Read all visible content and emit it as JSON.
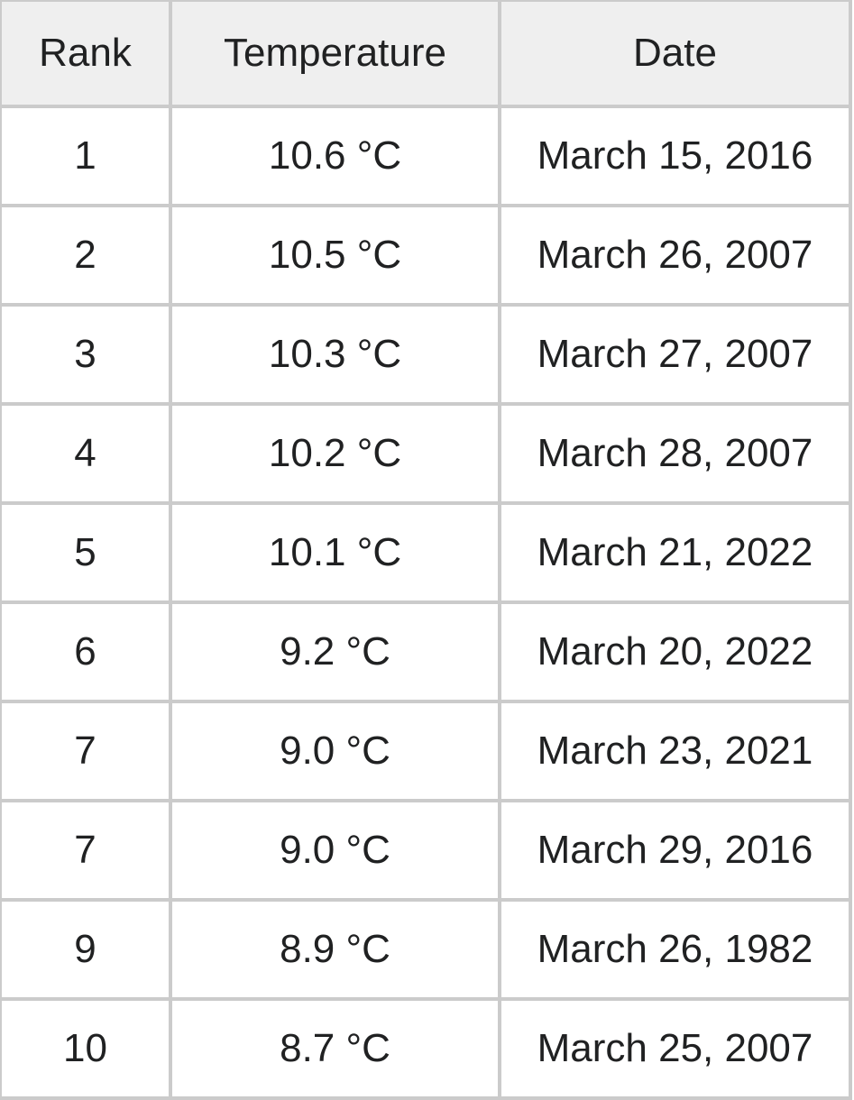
{
  "table": {
    "headers": [
      "Rank",
      "Temperature",
      "Date"
    ],
    "rows": [
      [
        "1",
        "10.6 °C",
        "March 15, 2016"
      ],
      [
        "2",
        "10.5 °C",
        "March 26, 2007"
      ],
      [
        "3",
        "10.3 °C",
        "March 27, 2007"
      ],
      [
        "4",
        "10.2 °C",
        "March 28, 2007"
      ],
      [
        "5",
        "10.1 °C",
        "March 21, 2022"
      ],
      [
        "6",
        "9.2 °C",
        "March 20, 2022"
      ],
      [
        "7",
        "9.0 °C",
        "March 23, 2021"
      ],
      [
        "7",
        "9.0 °C",
        "March 29, 2016"
      ],
      [
        "9",
        "8.9 °C",
        "March 26, 1982"
      ],
      [
        "10",
        "8.7 °C",
        "March 25, 2007"
      ]
    ]
  },
  "colors": {
    "header_bg": "#efefef",
    "border": "#cbcbcb",
    "text": "#202122"
  }
}
